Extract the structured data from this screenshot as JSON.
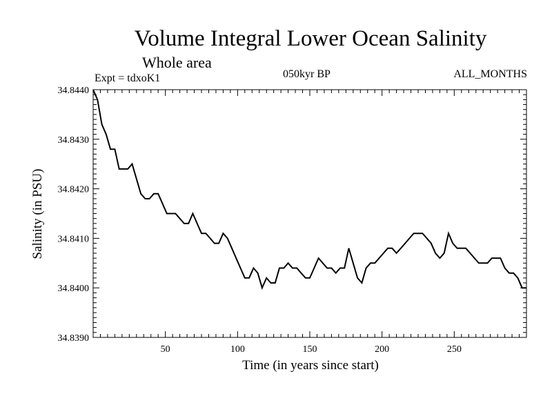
{
  "chart_data": {
    "type": "line",
    "title": "Volume Integral Lower Ocean Salinity",
    "subtitle": "Whole area",
    "left_label": "Expt = tdxoK1",
    "center_label": "050kyr BP",
    "right_label": "ALL_MONTHS",
    "xlabel": "Time (in years since start)",
    "ylabel": "Salinity (in PSU)",
    "xlim": [
      0,
      300
    ],
    "ylim": [
      34.839,
      34.844
    ],
    "xticks": [
      50,
      100,
      150,
      200,
      250
    ],
    "yticks": [
      34.839,
      34.84,
      34.841,
      34.842,
      34.843,
      34.844
    ],
    "ytick_labels": [
      "34.8390",
      "34.8400",
      "34.8410",
      "34.8420",
      "34.8430",
      "34.8440"
    ],
    "grid": false,
    "series": [
      {
        "name": "Salinity",
        "x": [
          0,
          3,
          6,
          9,
          12,
          15,
          18,
          21,
          24,
          27,
          30,
          33,
          36,
          39,
          42,
          45,
          48,
          51,
          54,
          57,
          60,
          63,
          66,
          69,
          72,
          75,
          78,
          81,
          84,
          87,
          90,
          93,
          96,
          99,
          102,
          105,
          108,
          111,
          114,
          117,
          120,
          123,
          126,
          129,
          132,
          135,
          138,
          141,
          144,
          147,
          150,
          153,
          156,
          159,
          162,
          165,
          168,
          171,
          174,
          177,
          180,
          183,
          186,
          189,
          192,
          195,
          198,
          201,
          204,
          207,
          210,
          213,
          216,
          219,
          222,
          225,
          228,
          231,
          234,
          237,
          240,
          243,
          246,
          249,
          252,
          255,
          258,
          261,
          264,
          267,
          270,
          273,
          276,
          279,
          282,
          285,
          288,
          291,
          294,
          297,
          300
        ],
        "values": [
          34.844,
          34.8438,
          34.8433,
          34.8431,
          34.8428,
          34.8428,
          34.8424,
          34.8424,
          34.8424,
          34.8425,
          34.8422,
          34.8419,
          34.8418,
          34.8418,
          34.8419,
          34.8419,
          34.8417,
          34.8415,
          34.8415,
          34.8415,
          34.8414,
          34.8413,
          34.8413,
          34.8415,
          34.8413,
          34.8411,
          34.8411,
          34.841,
          34.8409,
          34.8409,
          34.8411,
          34.841,
          34.8408,
          34.8406,
          34.8404,
          34.8402,
          34.8402,
          34.8404,
          34.8403,
          34.84,
          34.8402,
          34.8401,
          34.8401,
          34.8404,
          34.8404,
          34.8405,
          34.8404,
          34.8404,
          34.8403,
          34.8402,
          34.8402,
          34.8404,
          34.8406,
          34.8405,
          34.8404,
          34.8404,
          34.8403,
          34.8404,
          34.8404,
          34.8408,
          34.8405,
          34.8402,
          34.8401,
          34.8404,
          34.8405,
          34.8405,
          34.8406,
          34.8407,
          34.8408,
          34.8408,
          34.8407,
          34.8408,
          34.8409,
          34.841,
          34.8411,
          34.8411,
          34.8411,
          34.841,
          34.8409,
          34.8407,
          34.8406,
          34.8407,
          34.8411,
          34.8409,
          34.8408,
          34.8408,
          34.8408,
          34.8407,
          34.8406,
          34.8405,
          34.8405,
          34.8405,
          34.8406,
          34.8406,
          34.8406,
          34.8404,
          34.8403,
          34.8403,
          34.8402,
          34.84,
          34.84
        ]
      }
    ]
  }
}
